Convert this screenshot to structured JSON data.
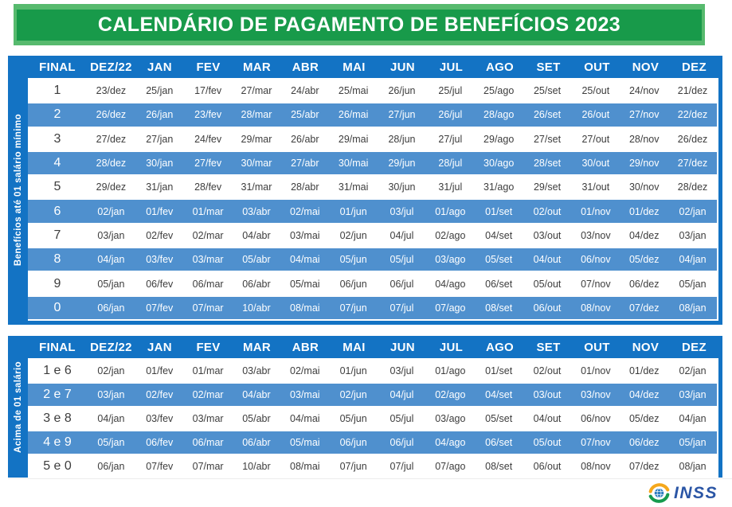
{
  "title": "CALENDÁRIO DE PAGAMENTO DE BENEFÍCIOS 2023",
  "colors": {
    "banner_green": "#189a4a",
    "banner_light_green": "#57ba6e",
    "table_frame_blue": "#1373c4",
    "row_blue": "#4f90ce",
    "row_white": "#ffffff",
    "dark_text": "#3d3d3d",
    "inss_text_blue": "#2a55a5",
    "logo_yellow": "#f5a81c",
    "logo_green": "#169b4e",
    "logo_globe_blue": "#2e7ec0"
  },
  "columns": [
    "FINAL",
    "DEZ/22",
    "JAN",
    "FEV",
    "MAR",
    "ABR",
    "MAI",
    "JUN",
    "JUL",
    "AGO",
    "SET",
    "OUT",
    "NOV",
    "DEZ"
  ],
  "tables": [
    {
      "side_label": "Benefícios até 01 salário mínimo",
      "rows": [
        {
          "final": "1",
          "dates": [
            "23/dez",
            "25/jan",
            "17/fev",
            "27/mar",
            "24/abr",
            "25/mai",
            "26/jun",
            "25/jul",
            "25/ago",
            "25/set",
            "25/out",
            "24/nov",
            "21/dez"
          ]
        },
        {
          "final": "2",
          "dates": [
            "26/dez",
            "26/jan",
            "23/fev",
            "28/mar",
            "25/abr",
            "26/mai",
            "27/jun",
            "26/jul",
            "28/ago",
            "26/set",
            "26/out",
            "27/nov",
            "22/dez"
          ]
        },
        {
          "final": "3",
          "dates": [
            "27/dez",
            "27/jan",
            "24/fev",
            "29/mar",
            "26/abr",
            "29/mai",
            "28/jun",
            "27/jul",
            "29/ago",
            "27/set",
            "27/out",
            "28/nov",
            "26/dez"
          ]
        },
        {
          "final": "4",
          "dates": [
            "28/dez",
            "30/jan",
            "27/fev",
            "30/mar",
            "27/abr",
            "30/mai",
            "29/jun",
            "28/jul",
            "30/ago",
            "28/set",
            "30/out",
            "29/nov",
            "27/dez"
          ]
        },
        {
          "final": "5",
          "dates": [
            "29/dez",
            "31/jan",
            "28/fev",
            "31/mar",
            "28/abr",
            "31/mai",
            "30/jun",
            "31/jul",
            "31/ago",
            "29/set",
            "31/out",
            "30/nov",
            "28/dez"
          ]
        },
        {
          "final": "6",
          "dates": [
            "02/jan",
            "01/fev",
            "01/mar",
            "03/abr",
            "02/mai",
            "01/jun",
            "03/jul",
            "01/ago",
            "01/set",
            "02/out",
            "01/nov",
            "01/dez",
            "02/jan"
          ]
        },
        {
          "final": "7",
          "dates": [
            "03/jan",
            "02/fev",
            "02/mar",
            "04/abr",
            "03/mai",
            "02/jun",
            "04/jul",
            "02/ago",
            "04/set",
            "03/out",
            "03/nov",
            "04/dez",
            "03/jan"
          ]
        },
        {
          "final": "8",
          "dates": [
            "04/jan",
            "03/fev",
            "03/mar",
            "05/abr",
            "04/mai",
            "05/jun",
            "05/jul",
            "03/ago",
            "05/set",
            "04/out",
            "06/nov",
            "05/dez",
            "04/jan"
          ]
        },
        {
          "final": "9",
          "dates": [
            "05/jan",
            "06/fev",
            "06/mar",
            "06/abr",
            "05/mai",
            "06/jun",
            "06/jul",
            "04/ago",
            "06/set",
            "05/out",
            "07/nov",
            "06/dez",
            "05/jan"
          ]
        },
        {
          "final": "0",
          "dates": [
            "06/jan",
            "07/fev",
            "07/mar",
            "10/abr",
            "08/mai",
            "07/jun",
            "07/jul",
            "07/ago",
            "08/set",
            "06/out",
            "08/nov",
            "07/dez",
            "08/jan"
          ]
        }
      ]
    },
    {
      "side_label": "Acima de 01 salário",
      "rows": [
        {
          "final": "1 e 6",
          "dates": [
            "02/jan",
            "01/fev",
            "01/mar",
            "03/abr",
            "02/mai",
            "01/jun",
            "03/jul",
            "01/ago",
            "01/set",
            "02/out",
            "01/nov",
            "01/dez",
            "02/jan"
          ]
        },
        {
          "final": "2 e 7",
          "dates": [
            "03/jan",
            "02/fev",
            "02/mar",
            "04/abr",
            "03/mai",
            "02/jun",
            "04/jul",
            "02/ago",
            "04/set",
            "03/out",
            "03/nov",
            "04/dez",
            "03/jan"
          ]
        },
        {
          "final": "3 e 8",
          "dates": [
            "04/jan",
            "03/fev",
            "03/mar",
            "05/abr",
            "04/mai",
            "05/jun",
            "05/jul",
            "03/ago",
            "05/set",
            "04/out",
            "06/nov",
            "05/dez",
            "04/jan"
          ]
        },
        {
          "final": "4 e 9",
          "dates": [
            "05/jan",
            "06/fev",
            "06/mar",
            "06/abr",
            "05/mai",
            "06/jun",
            "06/jul",
            "04/ago",
            "06/set",
            "05/out",
            "07/nov",
            "06/dez",
            "05/jan"
          ]
        },
        {
          "final": "5 e 0",
          "dates": [
            "06/jan",
            "07/fev",
            "07/mar",
            "10/abr",
            "08/mai",
            "07/jun",
            "07/jul",
            "07/ago",
            "08/set",
            "06/out",
            "08/nov",
            "07/dez",
            "08/jan"
          ]
        }
      ]
    }
  ],
  "logo": {
    "text": "INSS"
  }
}
